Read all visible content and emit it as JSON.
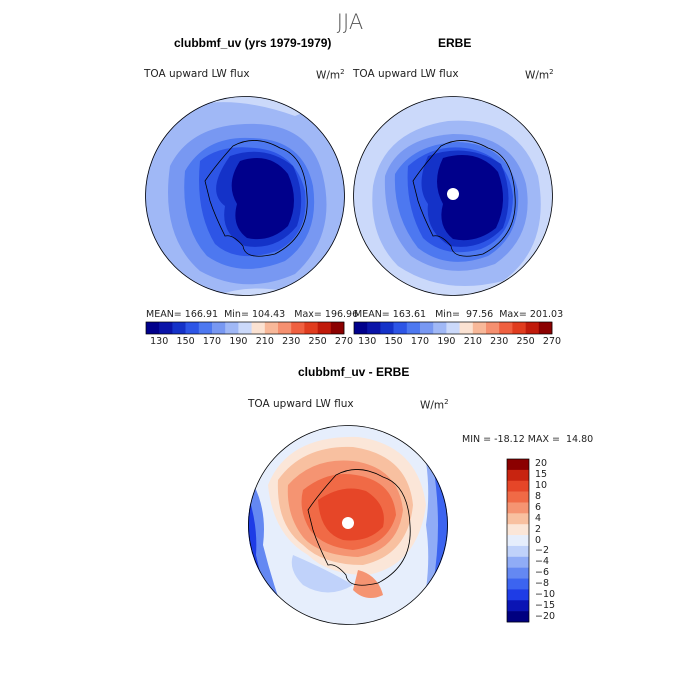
{
  "figure": {
    "title": "JJA"
  },
  "chart_data": [
    {
      "type": "heatmap",
      "projection": "south-polar stereographic",
      "title": "clubbmf_uv (yrs 1979-1979)",
      "variable": "TOA upward LW flux",
      "units_base": "W/m",
      "units_exp": "2",
      "stats": {
        "mean_label": "MEAN=",
        "mean": "166.91",
        "min_label": "Min=",
        "min": "104.43",
        "max_label": "Max=",
        "max": "196.96"
      },
      "colorbar": {
        "orientation": "horizontal",
        "levels": [
          130,
          140,
          150,
          160,
          170,
          180,
          190,
          200,
          210,
          220,
          230,
          240,
          250,
          260,
          270
        ],
        "tick_labels": [
          "130",
          "150",
          "170",
          "190",
          "210",
          "230",
          "250",
          "270"
        ]
      }
    },
    {
      "type": "heatmap",
      "projection": "south-polar stereographic",
      "title": "ERBE",
      "variable": "TOA upward LW flux",
      "units_base": "W/m",
      "units_exp": "2",
      "stats": {
        "mean_label": "MEAN=",
        "mean": "163.61",
        "min_label": "Min=",
        "min": "97.56",
        "max_label": "Max=",
        "max": "201.03"
      },
      "colorbar": {
        "orientation": "horizontal",
        "levels": [
          130,
          140,
          150,
          160,
          170,
          180,
          190,
          200,
          210,
          220,
          230,
          240,
          250,
          260,
          270
        ],
        "tick_labels": [
          "130",
          "150",
          "170",
          "190",
          "210",
          "230",
          "250",
          "270"
        ]
      }
    },
    {
      "type": "heatmap",
      "projection": "south-polar stereographic",
      "title": "clubbmf_uv - ERBE",
      "variable": "TOA upward LW flux",
      "units_base": "W/m",
      "units_exp": "2",
      "stats": {
        "min_label": "MIN =",
        "min": "-18.12",
        "max_label": "MAX =",
        "max": "14.80"
      },
      "colorbar": {
        "orientation": "vertical",
        "levels": [
          -20,
          -15,
          -10,
          -8,
          -6,
          -4,
          -2,
          0,
          2,
          4,
          6,
          8,
          10,
          15,
          20
        ],
        "tick_labels": [
          "20",
          "15",
          "10",
          "8",
          "6",
          "4",
          "2",
          "0",
          "−2",
          "−4",
          "−6",
          "−8",
          "−10",
          "−15",
          "−20"
        ]
      }
    }
  ],
  "palettes": {
    "flux": [
      "#00008b",
      "#0a14a8",
      "#1432c8",
      "#2d55e6",
      "#4d78f0",
      "#7898f2",
      "#a0b8f6",
      "#cbd9fa",
      "#fbe2d2",
      "#f8b899",
      "#f59070",
      "#ef6040",
      "#e03c1e",
      "#c01a0a",
      "#8b0000"
    ],
    "diff": [
      "#000080",
      "#0a14b4",
      "#1e3ce6",
      "#3c64f0",
      "#6488f2",
      "#90acf6",
      "#c0d2fa",
      "#e6eefc",
      "#fbe6d8",
      "#f8c0a0",
      "#f59472",
      "#f06a46",
      "#e64628",
      "#c82410",
      "#8b0000"
    ]
  }
}
